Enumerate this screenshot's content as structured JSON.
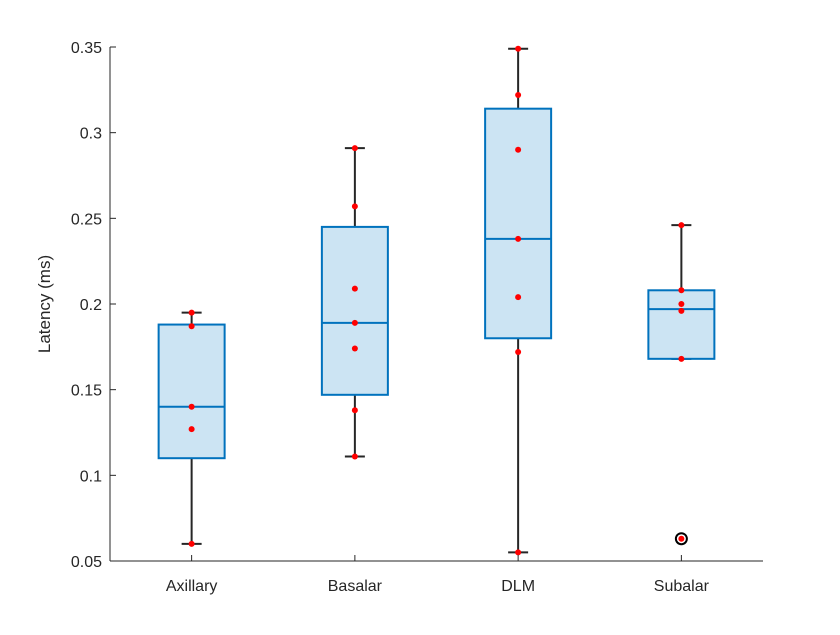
{
  "chart_data": {
    "type": "box",
    "title": "",
    "xlabel": "",
    "ylabel": "Latency (ms)",
    "ylim": [
      0.05,
      0.35
    ],
    "yticks": [
      0.05,
      0.1,
      0.15,
      0.2,
      0.25,
      0.3,
      0.35
    ],
    "ytick_labels": [
      "0.05",
      "0.1",
      "0.15",
      "0.2",
      "0.25",
      "0.3",
      "0.35"
    ],
    "grid": false,
    "categories": [
      "Axillary",
      "Basalar",
      "DLM",
      "Subalar"
    ],
    "boxes": [
      {
        "category": "Axillary",
        "whisker_low": 0.06,
        "q1": 0.11,
        "median": 0.14,
        "q3": 0.188,
        "whisker_high": 0.195,
        "outliers": [],
        "points": [
          0.195,
          0.187,
          0.14,
          0.127,
          0.06
        ]
      },
      {
        "category": "Basalar",
        "whisker_low": 0.111,
        "q1": 0.147,
        "median": 0.189,
        "q3": 0.245,
        "whisker_high": 0.291,
        "outliers": [],
        "points": [
          0.291,
          0.257,
          0.209,
          0.189,
          0.174,
          0.138,
          0.111
        ]
      },
      {
        "category": "DLM",
        "whisker_low": 0.055,
        "q1": 0.18,
        "median": 0.238,
        "q3": 0.314,
        "whisker_high": 0.349,
        "outliers": [],
        "points": [
          0.349,
          0.322,
          0.29,
          0.238,
          0.204,
          0.172,
          0.055
        ]
      },
      {
        "category": "Subalar",
        "whisker_low": 0.168,
        "q1": 0.168,
        "median": 0.197,
        "q3": 0.208,
        "whisker_high": 0.246,
        "outliers": [
          0.063
        ],
        "points": [
          0.246,
          0.208,
          0.2,
          0.196,
          0.168,
          0.063
        ]
      }
    ],
    "colors": {
      "box_fill": "#cce4f3",
      "box_edge": "#0072bd",
      "whisker": "#262626",
      "point": "#ff0000",
      "outlier_edge": "#000000",
      "axis": "#262626"
    }
  }
}
